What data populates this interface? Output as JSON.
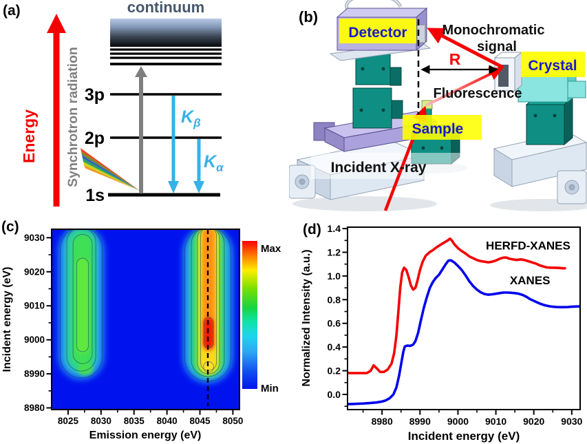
{
  "panel_a": {
    "label": "(a)",
    "energy_axis": "Energy",
    "synchrotron": "Synchrotron radiation",
    "continuum": "continuum",
    "level_3p": "3p",
    "level_2p": "2p",
    "level_1s": "1s",
    "k_beta_main": "K",
    "k_beta_sub": "β",
    "k_alpha_main": "K",
    "k_alpha_sub": "α",
    "colors": {
      "energy_arrow": "#f40000",
      "synchrotron_text": "#7f7f7f",
      "continuum_text": "#46566b",
      "emission_arrows": "#35b2e8",
      "excitation_arrow": "#7f7f7f"
    }
  },
  "panel_b": {
    "label": "(b)",
    "detector": "Detector",
    "monochromatic_line1": "Monochromatic",
    "monochromatic_line2": "signal",
    "radius": "R",
    "crystal": "Crystal",
    "fluorescence": "Fluorescence",
    "sample": "Sample",
    "incident": "Incident X-ray",
    "colors": {
      "highlight": "#ffff00",
      "label_text": "#1a1ac8",
      "beam": "#f40000",
      "machine_teal": "#0f8f84",
      "machine_lavender": "#aaa1dd",
      "machine_cyan": "#8ae4e0",
      "machine_white": "#eef3fa"
    }
  },
  "panel_c": {
    "label": "(c)"
  },
  "panel_d": {
    "label": "(d)"
  },
  "chart_data": [
    {
      "type": "heatmap",
      "panel": "c",
      "xlabel": "Emission energy (eV)",
      "ylabel": "Incident energy (eV)",
      "xlim": [
        8022.5,
        8051
      ],
      "ylim": [
        8979.5,
        9032.5
      ],
      "xticks": [
        8025,
        8030,
        8035,
        8040,
        8045,
        8050
      ],
      "xticks_minor": [
        8027.5,
        8032.5,
        8037.5,
        8042.5,
        8047.5
      ],
      "yticks": [
        8980,
        8990,
        9000,
        9010,
        9020,
        9030
      ],
      "yticks_minor": [
        8985,
        8995,
        9005,
        9015,
        9025
      ],
      "background_color": "#0013ee",
      "dashed_line_x": 8046.2,
      "grid": false,
      "colorbar": {
        "max_label": "Max",
        "min_label": "Min",
        "stops": [
          [
            "0%",
            "#fb0000"
          ],
          [
            "10%",
            "#ff7c00"
          ],
          [
            "20%",
            "#fdee00"
          ],
          [
            "32%",
            "#7be000"
          ],
          [
            "45%",
            "#17d543"
          ],
          [
            "55%",
            "#0fe3ac"
          ],
          [
            "65%",
            "#1ed3f0"
          ],
          [
            "75%",
            "#2da6f5"
          ],
          [
            "88%",
            "#1150f2"
          ],
          [
            "100%",
            "#0013ee"
          ]
        ]
      },
      "features": [
        {
          "name": "weak emission band",
          "emission_center_ev": 8027,
          "incident_range_ev": [
            8989,
            9032
          ],
          "peak_level": "green (mid intensity)"
        },
        {
          "name": "main emission band",
          "emission_center_ev": 8046.2,
          "incident_range_ev": [
            8988,
            9032
          ],
          "hotspot_incident_ev": 9001,
          "secondary_blob_incident_ev": 8991.5,
          "peak_level": "red (Max)"
        }
      ],
      "layers": [
        {
          "em": 8027.0,
          "hi": 9033,
          "lo": 8988.5,
          "w": 6.8,
          "color": "#2fb9f2",
          "blur": 5,
          "op": 0.85
        },
        {
          "em": 8027.0,
          "hi": 9033,
          "lo": 8990.5,
          "w": 4.6,
          "color": "#2ed98a",
          "blur": 4,
          "op": 0.9
        },
        {
          "em": 8027.2,
          "hi": 9031,
          "lo": 8992.5,
          "w": 3.0,
          "color": "#3fe052",
          "blur": 3,
          "op": 0.95
        },
        {
          "em": 8027.2,
          "hi": 9024,
          "lo": 8996.0,
          "w": 1.9,
          "color": "#63ea3c",
          "blur": 2.5,
          "op": 0.9
        },
        {
          "em": 8027.6,
          "hi": 8993.5,
          "lo": 8989.5,
          "w": 2.4,
          "color": "#47e04e",
          "blur": 2.5,
          "op": 0.9
        },
        {
          "em": 8046.2,
          "hi": 9033,
          "lo": 8987.5,
          "w": 7.4,
          "color": "#2fb9f2",
          "blur": 5,
          "op": 0.9
        },
        {
          "em": 8046.2,
          "hi": 9033,
          "lo": 8989.0,
          "w": 5.2,
          "color": "#2ed96a",
          "blur": 4,
          "op": 0.95
        },
        {
          "em": 8046.3,
          "hi": 9033,
          "lo": 8989.5,
          "w": 3.6,
          "color": "#b8eb2e",
          "blur": 3,
          "op": 0.95
        },
        {
          "em": 8046.3,
          "hi": 9033,
          "lo": 8990.5,
          "w": 2.6,
          "color": "#ffd91e",
          "blur": 2.5,
          "op": 0.95
        },
        {
          "em": 8046.3,
          "hi": 9033,
          "lo": 8996.5,
          "w": 1.9,
          "color": "#ff9013",
          "blur": 2.5,
          "op": 0.95
        },
        {
          "em": 8046.3,
          "hi": 9006.5,
          "lo": 8997.5,
          "w": 1.5,
          "color": "#f31705",
          "blur": 2,
          "op": 0.95
        },
        {
          "em": 8046.3,
          "hi": 8993.8,
          "lo": 8990.2,
          "w": 1.7,
          "color": "#ffe329",
          "blur": 1.8,
          "op": 0.95
        }
      ],
      "contours": [
        {
          "em": 8027.0,
          "hi": 9033,
          "lo": 8988.8,
          "w": 6.4
        },
        {
          "em": 8027.0,
          "hi": 9033,
          "lo": 8990.8,
          "w": 4.4
        },
        {
          "em": 8027.2,
          "hi": 9031,
          "lo": 8993.0,
          "w": 2.9
        },
        {
          "em": 8027.2,
          "hi": 9024,
          "lo": 8996.5,
          "w": 1.8
        },
        {
          "em": 8046.2,
          "hi": 9033,
          "lo": 8987.8,
          "w": 7.0
        },
        {
          "em": 8046.2,
          "hi": 9033,
          "lo": 8989.2,
          "w": 5.0
        },
        {
          "em": 8046.3,
          "hi": 9033,
          "lo": 8990.0,
          "w": 3.4
        },
        {
          "em": 8046.3,
          "hi": 9033,
          "lo": 8991.0,
          "w": 2.4
        },
        {
          "em": 8046.3,
          "hi": 9006.5,
          "lo": 8997.6,
          "w": 1.4
        },
        {
          "em": 8046.3,
          "hi": 8993.6,
          "lo": 8990.4,
          "w": 1.5
        }
      ]
    },
    {
      "type": "line",
      "panel": "d",
      "xlabel": "Incident energy (eV)",
      "ylabel": "Normalized Intensity (a.u.)",
      "xlim": [
        8970.9,
        9032.2
      ],
      "ylim": [
        -0.128,
        1.412
      ],
      "xticks": [
        8980,
        8990,
        9000,
        9010,
        9020,
        9030
      ],
      "xticks_minor": [
        8975,
        8985,
        8995,
        9005,
        9015,
        9025
      ],
      "ytick_labels": [
        "0.0",
        "0.2",
        "0.4",
        "0.6",
        "0.8",
        "1.0",
        "1.2",
        "1.4"
      ],
      "yticks_minor": [
        -0.1,
        0.1,
        0.3,
        0.5,
        0.7,
        0.9,
        1.1,
        1.3
      ],
      "grid": false,
      "legend_position": "inline-annotations",
      "annotations": [
        {
          "text": "HERFD-XANES",
          "x": 9018.5,
          "y": 1.223
        },
        {
          "text": "XANES",
          "x": 9019.0,
          "y": 0.93
        }
      ],
      "series": [
        {
          "name": "HERFD-XANES",
          "color": "#f40000",
          "points": [
            [
              8971,
              0.18
            ],
            [
              8974,
              0.18
            ],
            [
              8976,
              0.18
            ],
            [
              8977,
              0.2
            ],
            [
              8977.8,
              0.245
            ],
            [
              8978.6,
              0.22
            ],
            [
              8979.5,
              0.19
            ],
            [
              8980.5,
              0.19
            ],
            [
              8981.5,
              0.21
            ],
            [
              8982.5,
              0.26
            ],
            [
              8983.2,
              0.35
            ],
            [
              8983.8,
              0.5
            ],
            [
              8984.3,
              0.7
            ],
            [
              8984.8,
              0.9
            ],
            [
              8985.3,
              1.03
            ],
            [
              8985.8,
              1.07
            ],
            [
              8986.4,
              1.05
            ],
            [
              8987,
              0.99
            ],
            [
              8987.6,
              0.92
            ],
            [
              8988.2,
              0.885
            ],
            [
              8988.8,
              0.9
            ],
            [
              8989.4,
              0.97
            ],
            [
              8990,
              1.05
            ],
            [
              8990.7,
              1.12
            ],
            [
              8991.5,
              1.17
            ],
            [
              8992.5,
              1.2
            ],
            [
              8993.5,
              1.22
            ],
            [
              8994.5,
              1.245
            ],
            [
              8995.5,
              1.265
            ],
            [
              8996.5,
              1.285
            ],
            [
              8997.3,
              1.3
            ],
            [
              8997.9,
              1.315
            ],
            [
              8998.4,
              1.3
            ],
            [
              8999,
              1.27
            ],
            [
              9000,
              1.235
            ],
            [
              9001,
              1.21
            ],
            [
              9002,
              1.19
            ],
            [
              9003,
              1.165
            ],
            [
              9004,
              1.15
            ],
            [
              9005,
              1.135
            ],
            [
              9006,
              1.125
            ],
            [
              9007,
              1.12
            ],
            [
              9008,
              1.115
            ],
            [
              9009,
              1.12
            ],
            [
              9010,
              1.13
            ],
            [
              9011,
              1.145
            ],
            [
              9012,
              1.155
            ],
            [
              9012.8,
              1.155
            ],
            [
              9013.6,
              1.145
            ],
            [
              9014.5,
              1.14
            ],
            [
              9015.5,
              1.135
            ],
            [
              9016.5,
              1.14
            ],
            [
              9017.5,
              1.135
            ],
            [
              9018.5,
              1.125
            ],
            [
              9019.5,
              1.115
            ],
            [
              9020.5,
              1.105
            ],
            [
              9021.5,
              1.09
            ],
            [
              9022.5,
              1.08
            ],
            [
              9023.5,
              1.072
            ],
            [
              9024.5,
              1.07
            ],
            [
              9025.5,
              1.07
            ],
            [
              9026.5,
              1.068
            ],
            [
              9027.5,
              1.065
            ],
            [
              9028.2,
              1.065
            ]
          ]
        },
        {
          "name": "XANES",
          "color": "#0000ee",
          "points": [
            [
              8971,
              -0.082
            ],
            [
              8973,
              -0.08
            ],
            [
              8975,
              -0.077
            ],
            [
              8977,
              -0.072
            ],
            [
              8978.5,
              -0.068
            ],
            [
              8980,
              -0.06
            ],
            [
              8981,
              -0.05
            ],
            [
              8982,
              -0.032
            ],
            [
              8983,
              0.0
            ],
            [
              8983.8,
              0.06
            ],
            [
              8984.5,
              0.16
            ],
            [
              8985.1,
              0.27
            ],
            [
              8985.6,
              0.36
            ],
            [
              8986,
              0.405
            ],
            [
              8986.6,
              0.412
            ],
            [
              8987.4,
              0.41
            ],
            [
              8988.2,
              0.42
            ],
            [
              8988.8,
              0.45
            ],
            [
              8989.5,
              0.52
            ],
            [
              8990.2,
              0.62
            ],
            [
              8991,
              0.73
            ],
            [
              8991.8,
              0.82
            ],
            [
              8992.6,
              0.9
            ],
            [
              8993.4,
              0.95
            ],
            [
              8994.2,
              0.985
            ],
            [
              8995,
              1.01
            ],
            [
              8996,
              1.06
            ],
            [
              8996.8,
              1.1
            ],
            [
              8997.5,
              1.13
            ],
            [
              8998.2,
              1.132
            ],
            [
              8999,
              1.115
            ],
            [
              9000,
              1.085
            ],
            [
              9001,
              1.05
            ],
            [
              9002,
              1.005
            ],
            [
              9003,
              0.955
            ],
            [
              9004,
              0.915
            ],
            [
              9005,
              0.885
            ],
            [
              9006,
              0.862
            ],
            [
              9007,
              0.848
            ],
            [
              9008,
              0.842
            ],
            [
              9009,
              0.845
            ],
            [
              9010,
              0.85
            ],
            [
              9011,
              0.855
            ],
            [
              9012,
              0.86
            ],
            [
              9013,
              0.86
            ],
            [
              9014,
              0.858
            ],
            [
              9015,
              0.855
            ],
            [
              9016,
              0.85
            ],
            [
              9017,
              0.84
            ],
            [
              9018,
              0.825
            ],
            [
              9019,
              0.805
            ],
            [
              9020,
              0.79
            ],
            [
              9021,
              0.775
            ],
            [
              9022,
              0.762
            ],
            [
              9023,
              0.752
            ],
            [
              9024,
              0.745
            ],
            [
              9025,
              0.74
            ],
            [
              9026,
              0.738
            ],
            [
              9027,
              0.737
            ],
            [
              9028,
              0.737
            ],
            [
              9029,
              0.738
            ],
            [
              9030,
              0.74
            ],
            [
              9031,
              0.742
            ],
            [
              9032,
              0.743
            ]
          ]
        }
      ]
    }
  ]
}
